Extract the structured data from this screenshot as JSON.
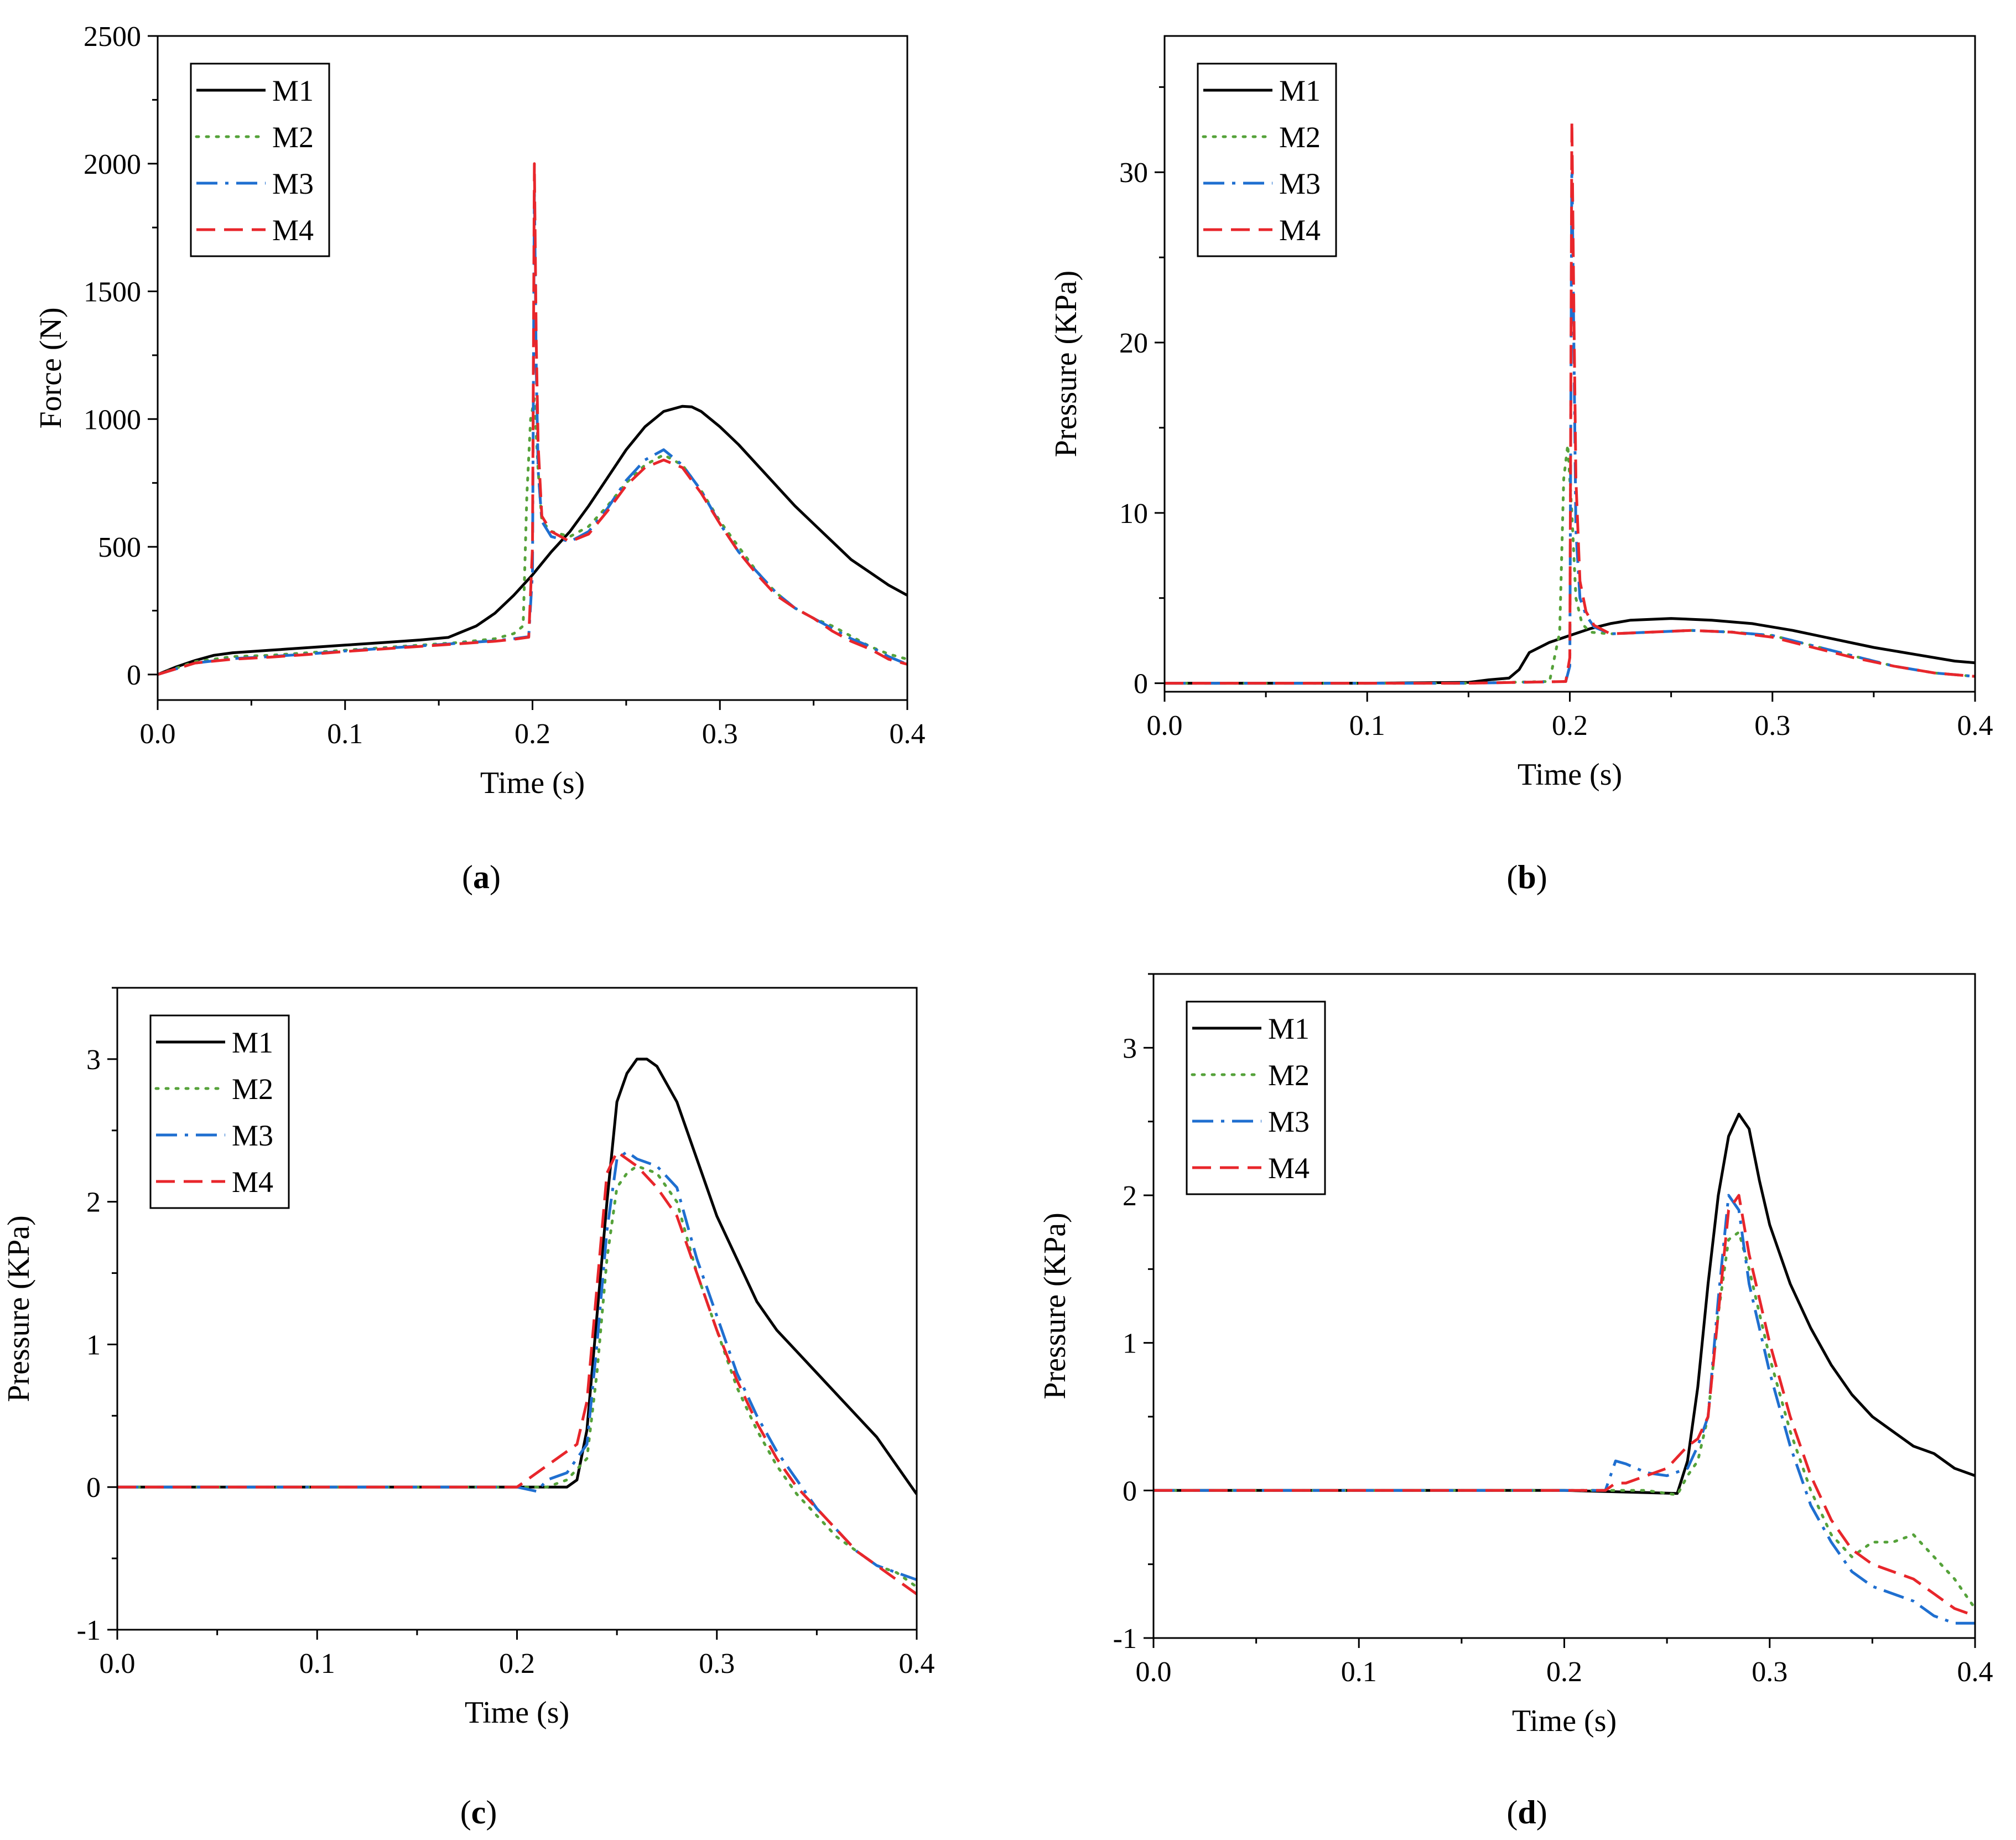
{
  "chart_data": [
    {
      "type": "line",
      "caption_letter": "a",
      "xlabel": "Time (s)",
      "ylabel": "Force (N)",
      "xlim": [
        0,
        0.4
      ],
      "ylim": [
        -100,
        2500
      ],
      "xticks": [
        "0.0",
        "0.1",
        "0.2",
        "0.3",
        "0.4"
      ],
      "yticks": [
        "0",
        "500",
        "1000",
        "1500",
        "2000",
        "2500"
      ],
      "legend_position": "top-left",
      "series": [
        {
          "name": "M1",
          "color": "#000000",
          "dash": "solid",
          "x": [
            0,
            0.01,
            0.02,
            0.03,
            0.04,
            0.06,
            0.08,
            0.1,
            0.12,
            0.14,
            0.155,
            0.16,
            0.17,
            0.18,
            0.19,
            0.2,
            0.21,
            0.22,
            0.23,
            0.24,
            0.25,
            0.26,
            0.27,
            0.28,
            0.285,
            0.29,
            0.3,
            0.31,
            0.32,
            0.33,
            0.34,
            0.35,
            0.36,
            0.37,
            0.38,
            0.39,
            0.4
          ],
          "y": [
            0,
            30,
            55,
            75,
            85,
            95,
            105,
            115,
            125,
            135,
            145,
            160,
            190,
            240,
            310,
            390,
            480,
            560,
            660,
            770,
            880,
            970,
            1030,
            1050,
            1048,
            1030,
            970,
            900,
            820,
            740,
            660,
            590,
            520,
            450,
            400,
            350,
            310
          ]
        },
        {
          "name": "M2",
          "color": "#55a23a",
          "dash": "dotted",
          "x": [
            0,
            0.02,
            0.04,
            0.06,
            0.08,
            0.1,
            0.12,
            0.14,
            0.16,
            0.18,
            0.19,
            0.195,
            0.197,
            0.199,
            0.201,
            0.203,
            0.205,
            0.21,
            0.22,
            0.23,
            0.24,
            0.25,
            0.26,
            0.27,
            0.28,
            0.29,
            0.3,
            0.31,
            0.32,
            0.33,
            0.34,
            0.35,
            0.36,
            0.37,
            0.38,
            0.39,
            0.4
          ],
          "y": [
            0,
            50,
            70,
            75,
            85,
            95,
            105,
            115,
            125,
            140,
            160,
            190,
            700,
            1000,
            1080,
            800,
            600,
            560,
            540,
            580,
            660,
            750,
            820,
            860,
            820,
            720,
            600,
            500,
            400,
            320,
            260,
            220,
            190,
            150,
            110,
            80,
            60
          ]
        },
        {
          "name": "M3",
          "color": "#1f6fd0",
          "dash": "dashdot",
          "x": [
            0,
            0.02,
            0.04,
            0.06,
            0.08,
            0.1,
            0.12,
            0.14,
            0.16,
            0.18,
            0.19,
            0.198,
            0.2,
            0.201,
            0.202,
            0.203,
            0.205,
            0.21,
            0.22,
            0.23,
            0.24,
            0.25,
            0.26,
            0.27,
            0.28,
            0.29,
            0.3,
            0.31,
            0.32,
            0.33,
            0.34,
            0.35,
            0.36,
            0.37,
            0.38,
            0.39,
            0.4
          ],
          "y": [
            0,
            45,
            62,
            70,
            80,
            92,
            102,
            112,
            122,
            132,
            140,
            148,
            400,
            1900,
            1200,
            800,
            600,
            540,
            520,
            560,
            650,
            760,
            840,
            880,
            820,
            720,
            590,
            480,
            400,
            320,
            260,
            220,
            180,
            140,
            110,
            70,
            40
          ]
        },
        {
          "name": "M4",
          "color": "#e8262b",
          "dash": "dashed",
          "x": [
            0,
            0.02,
            0.04,
            0.06,
            0.08,
            0.1,
            0.12,
            0.14,
            0.16,
            0.18,
            0.19,
            0.198,
            0.2,
            0.201,
            0.202,
            0.203,
            0.205,
            0.21,
            0.22,
            0.23,
            0.24,
            0.25,
            0.26,
            0.27,
            0.28,
            0.29,
            0.3,
            0.31,
            0.32,
            0.33,
            0.34,
            0.35,
            0.36,
            0.37,
            0.38,
            0.39,
            0.4
          ],
          "y": [
            0,
            45,
            60,
            68,
            78,
            90,
            100,
            110,
            120,
            130,
            138,
            146,
            500,
            2000,
            1300,
            900,
            620,
            560,
            520,
            550,
            640,
            740,
            810,
            840,
            810,
            710,
            590,
            480,
            390,
            310,
            260,
            220,
            170,
            130,
            100,
            60,
            40
          ]
        }
      ]
    },
    {
      "type": "line",
      "caption_letter": "b",
      "xlabel": "Time (s)",
      "ylabel": "Pressure (KPa)",
      "xlim": [
        0,
        0.4
      ],
      "ylim": [
        -0.5,
        38
      ],
      "xticks": [
        "0.0",
        "0.1",
        "0.2",
        "0.3",
        "0.4"
      ],
      "yticks": [
        "0",
        "10",
        "20",
        "30"
      ],
      "legend_position": "top-left",
      "series": [
        {
          "name": "M1",
          "color": "#000000",
          "dash": "solid",
          "x": [
            0,
            0.05,
            0.1,
            0.15,
            0.16,
            0.17,
            0.175,
            0.18,
            0.19,
            0.2,
            0.21,
            0.22,
            0.23,
            0.25,
            0.27,
            0.29,
            0.31,
            0.33,
            0.35,
            0.37,
            0.39,
            0.4
          ],
          "y": [
            0,
            0,
            0,
            0.05,
            0.2,
            0.3,
            0.8,
            1.8,
            2.4,
            2.8,
            3.2,
            3.5,
            3.7,
            3.8,
            3.7,
            3.5,
            3.1,
            2.6,
            2.1,
            1.7,
            1.3,
            1.2
          ]
        },
        {
          "name": "M2",
          "color": "#55a23a",
          "dash": "dotted",
          "x": [
            0,
            0.05,
            0.1,
            0.15,
            0.19,
            0.195,
            0.197,
            0.199,
            0.201,
            0.203,
            0.206,
            0.21,
            0.22,
            0.24,
            0.26,
            0.28,
            0.3,
            0.32,
            0.34,
            0.36,
            0.38,
            0.4
          ],
          "y": [
            0,
            0,
            0,
            0,
            0.1,
            3,
            12,
            14,
            10,
            5,
            3.5,
            3,
            2.9,
            3.0,
            3.1,
            3.0,
            2.8,
            2.2,
            1.6,
            1.0,
            0.6,
            0.4
          ]
        },
        {
          "name": "M3",
          "color": "#1f6fd0",
          "dash": "dashdot",
          "x": [
            0,
            0.05,
            0.1,
            0.15,
            0.198,
            0.2,
            0.201,
            0.202,
            0.203,
            0.205,
            0.208,
            0.212,
            0.22,
            0.24,
            0.26,
            0.28,
            0.3,
            0.32,
            0.34,
            0.36,
            0.38,
            0.4
          ],
          "y": [
            0,
            0,
            0,
            0,
            0.1,
            1,
            31,
            20,
            9,
            5,
            4,
            3.3,
            2.9,
            3.0,
            3.1,
            3.0,
            2.8,
            2.2,
            1.6,
            1.0,
            0.6,
            0.4
          ]
        },
        {
          "name": "M4",
          "color": "#e8262b",
          "dash": "dashed",
          "x": [
            0,
            0.05,
            0.1,
            0.15,
            0.198,
            0.2,
            0.201,
            0.202,
            0.203,
            0.205,
            0.208,
            0.212,
            0.22,
            0.24,
            0.26,
            0.28,
            0.3,
            0.32,
            0.34,
            0.36,
            0.38,
            0.4
          ],
          "y": [
            0,
            0,
            0,
            0,
            0.1,
            1.5,
            33,
            22,
            12,
            6,
            4.2,
            3.4,
            2.9,
            3.0,
            3.1,
            3.0,
            2.7,
            2.1,
            1.5,
            1.0,
            0.6,
            0.4
          ]
        }
      ]
    },
    {
      "type": "line",
      "caption_letter": "c",
      "xlabel": "Time (s)",
      "ylabel": "Pressure (KPa)",
      "xlim": [
        0,
        0.4
      ],
      "ylim": [
        -1,
        3.5
      ],
      "xticks": [
        "0.0",
        "0.1",
        "0.2",
        "0.3",
        "0.4"
      ],
      "yticks": [
        "-1",
        "0",
        "1",
        "2",
        "3"
      ],
      "legend_position": "top-left",
      "series": [
        {
          "name": "M1",
          "color": "#000000",
          "dash": "solid",
          "x": [
            0,
            0.1,
            0.2,
            0.225,
            0.23,
            0.235,
            0.24,
            0.245,
            0.25,
            0.255,
            0.26,
            0.265,
            0.27,
            0.28,
            0.29,
            0.3,
            0.31,
            0.32,
            0.33,
            0.34,
            0.35,
            0.36,
            0.37,
            0.38,
            0.39,
            0.4
          ],
          "y": [
            0,
            0,
            0,
            0,
            0.05,
            0.4,
            1.2,
            2.0,
            2.7,
            2.9,
            3.0,
            3.0,
            2.95,
            2.7,
            2.3,
            1.9,
            1.6,
            1.3,
            1.1,
            0.95,
            0.8,
            0.65,
            0.5,
            0.35,
            0.15,
            -0.05
          ]
        },
        {
          "name": "M2",
          "color": "#55a23a",
          "dash": "dotted",
          "x": [
            0,
            0.1,
            0.2,
            0.215,
            0.225,
            0.235,
            0.24,
            0.245,
            0.25,
            0.255,
            0.26,
            0.27,
            0.28,
            0.29,
            0.3,
            0.31,
            0.32,
            0.33,
            0.34,
            0.35,
            0.36,
            0.37,
            0.38,
            0.39,
            0.4
          ],
          "y": [
            0,
            0,
            0,
            0,
            0.05,
            0.2,
            0.8,
            1.6,
            2.1,
            2.2,
            2.25,
            2.2,
            2.0,
            1.5,
            1.1,
            0.7,
            0.4,
            0.15,
            -0.05,
            -0.2,
            -0.35,
            -0.45,
            -0.55,
            -0.6,
            -0.7
          ]
        },
        {
          "name": "M3",
          "color": "#1f6fd0",
          "dash": "dashdot",
          "x": [
            0,
            0.1,
            0.2,
            0.21,
            0.215,
            0.225,
            0.235,
            0.24,
            0.245,
            0.25,
            0.255,
            0.26,
            0.27,
            0.28,
            0.29,
            0.3,
            0.31,
            0.32,
            0.33,
            0.34,
            0.35,
            0.36,
            0.37,
            0.38,
            0.39,
            0.4
          ],
          "y": [
            0,
            0,
            0,
            -0.03,
            0.05,
            0.1,
            0.3,
            1.0,
            1.8,
            2.3,
            2.35,
            2.3,
            2.25,
            2.1,
            1.6,
            1.2,
            0.8,
            0.5,
            0.25,
            0.05,
            -0.15,
            -0.3,
            -0.45,
            -0.55,
            -0.6,
            -0.65
          ]
        },
        {
          "name": "M4",
          "color": "#e8262b",
          "dash": "dashed",
          "x": [
            0,
            0.1,
            0.2,
            0.21,
            0.22,
            0.23,
            0.235,
            0.24,
            0.245,
            0.25,
            0.255,
            0.26,
            0.27,
            0.28,
            0.29,
            0.3,
            0.31,
            0.32,
            0.33,
            0.34,
            0.35,
            0.36,
            0.37,
            0.38,
            0.39,
            0.4
          ],
          "y": [
            0,
            0,
            0,
            0.1,
            0.2,
            0.3,
            0.6,
            1.4,
            2.2,
            2.35,
            2.3,
            2.25,
            2.1,
            1.9,
            1.5,
            1.1,
            0.75,
            0.45,
            0.2,
            0.0,
            -0.15,
            -0.3,
            -0.45,
            -0.55,
            -0.65,
            -0.75
          ]
        }
      ]
    },
    {
      "type": "line",
      "caption_letter": "d",
      "xlabel": "Time (s)",
      "ylabel": "Pressure (KPa)",
      "xlim": [
        0,
        0.4
      ],
      "ylim": [
        -1,
        3.5
      ],
      "xticks": [
        "0.0",
        "0.1",
        "0.2",
        "0.3",
        "0.4"
      ],
      "yticks": [
        "-1",
        "0",
        "1",
        "2",
        "3"
      ],
      "legend_position": "top-left",
      "series": [
        {
          "name": "M1",
          "color": "#000000",
          "dash": "solid",
          "x": [
            0,
            0.1,
            0.2,
            0.255,
            0.26,
            0.265,
            0.27,
            0.275,
            0.28,
            0.285,
            0.29,
            0.295,
            0.3,
            0.31,
            0.32,
            0.33,
            0.34,
            0.35,
            0.36,
            0.37,
            0.38,
            0.39,
            0.4
          ],
          "y": [
            0,
            0,
            0,
            -0.02,
            0.2,
            0.7,
            1.4,
            2.0,
            2.4,
            2.55,
            2.45,
            2.1,
            1.8,
            1.4,
            1.1,
            0.85,
            0.65,
            0.5,
            0.4,
            0.3,
            0.25,
            0.15,
            0.1
          ]
        },
        {
          "name": "M2",
          "color": "#55a23a",
          "dash": "dotted",
          "x": [
            0,
            0.1,
            0.2,
            0.24,
            0.25,
            0.255,
            0.26,
            0.265,
            0.27,
            0.275,
            0.28,
            0.285,
            0.29,
            0.3,
            0.31,
            0.32,
            0.33,
            0.34,
            0.35,
            0.36,
            0.37,
            0.38,
            0.39,
            0.4
          ],
          "y": [
            0,
            0,
            0,
            0,
            -0.02,
            -0.03,
            0.1,
            0.2,
            0.5,
            1.2,
            1.7,
            1.75,
            1.5,
            0.9,
            0.4,
            0.0,
            -0.3,
            -0.45,
            -0.35,
            -0.35,
            -0.3,
            -0.45,
            -0.6,
            -0.8
          ]
        },
        {
          "name": "M3",
          "color": "#1f6fd0",
          "dash": "dashdot",
          "x": [
            0,
            0.1,
            0.2,
            0.22,
            0.225,
            0.23,
            0.24,
            0.25,
            0.26,
            0.265,
            0.27,
            0.275,
            0.28,
            0.285,
            0.29,
            0.3,
            0.31,
            0.32,
            0.33,
            0.34,
            0.35,
            0.36,
            0.37,
            0.38,
            0.39,
            0.4
          ],
          "y": [
            0,
            0,
            0,
            0,
            0.2,
            0.18,
            0.12,
            0.1,
            0.15,
            0.3,
            0.5,
            1.3,
            2.0,
            1.9,
            1.4,
            0.8,
            0.3,
            -0.1,
            -0.35,
            -0.55,
            -0.65,
            -0.7,
            -0.75,
            -0.85,
            -0.9,
            -0.9
          ]
        },
        {
          "name": "M4",
          "color": "#e8262b",
          "dash": "dashed",
          "x": [
            0,
            0.1,
            0.2,
            0.22,
            0.225,
            0.23,
            0.24,
            0.25,
            0.26,
            0.265,
            0.27,
            0.275,
            0.28,
            0.285,
            0.29,
            0.3,
            0.31,
            0.32,
            0.33,
            0.34,
            0.35,
            0.36,
            0.37,
            0.38,
            0.39,
            0.4
          ],
          "y": [
            0,
            0,
            0,
            0,
            0.05,
            0.05,
            0.1,
            0.15,
            0.3,
            0.35,
            0.5,
            1.2,
            1.9,
            2.0,
            1.6,
            1.0,
            0.5,
            0.1,
            -0.2,
            -0.4,
            -0.5,
            -0.55,
            -0.6,
            -0.7,
            -0.8,
            -0.85
          ]
        }
      ]
    }
  ]
}
